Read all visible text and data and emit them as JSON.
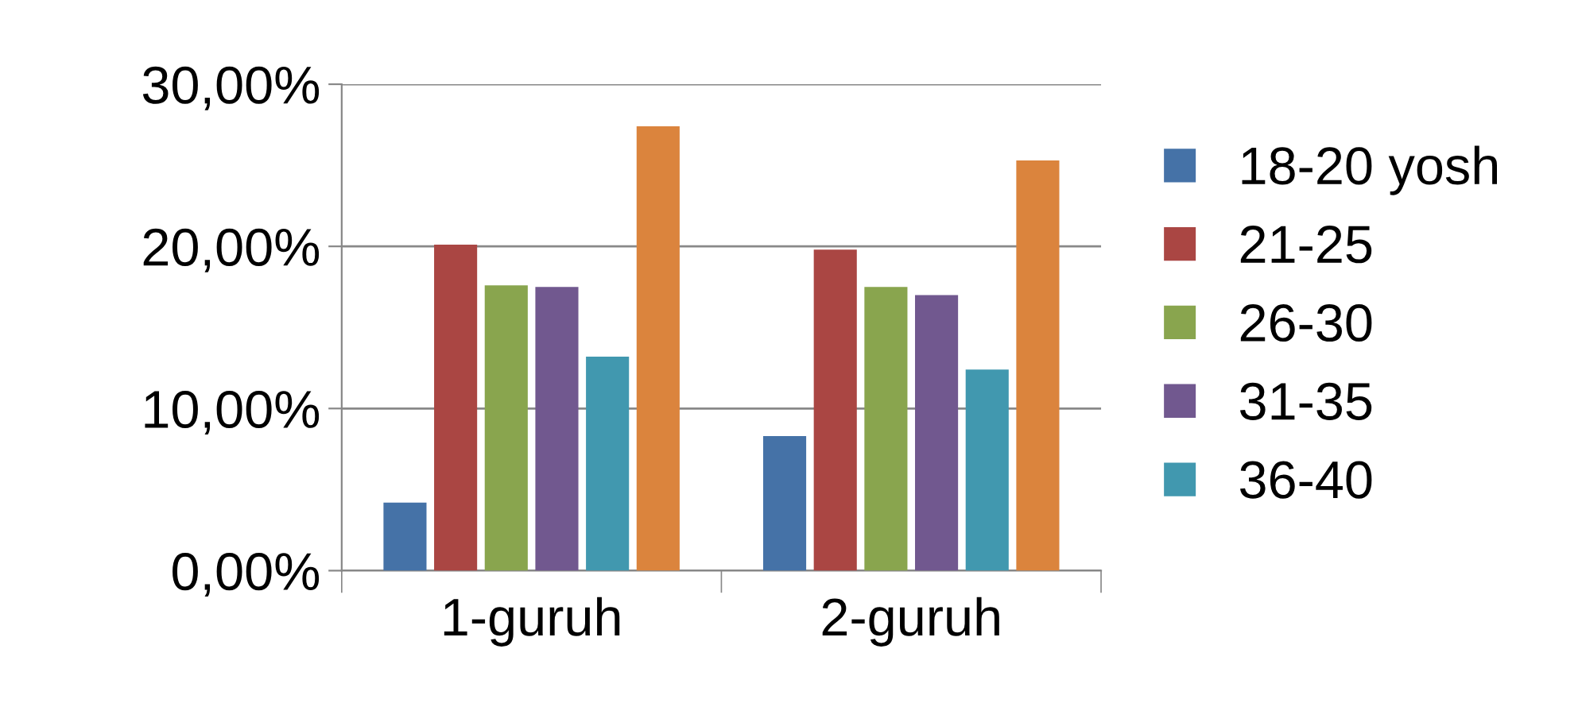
{
  "chart_data": {
    "type": "bar",
    "categories": [
      "1-guruh",
      "2-guruh"
    ],
    "series": [
      {
        "name": "18-20 yosh",
        "color": "#4572a7",
        "values": [
          4.2,
          8.3
        ]
      },
      {
        "name": "21-25",
        "color": "#aa4643",
        "values": [
          20.1,
          19.8
        ]
      },
      {
        "name": "26-30",
        "color": "#89a54e",
        "values": [
          17.6,
          17.5
        ]
      },
      {
        "name": "31-35",
        "color": "#71588f",
        "values": [
          17.5,
          17.0
        ]
      },
      {
        "name": "36-40",
        "color": "#4198af",
        "values": [
          13.2,
          12.4
        ]
      },
      {
        "color": "#db843d",
        "values": [
          27.4,
          25.3
        ]
      }
    ],
    "ylim": [
      0,
      30
    ],
    "yticks": [
      {
        "value": 0,
        "label": "0,00%"
      },
      {
        "value": 10,
        "label": "10,00%"
      },
      {
        "value": 20,
        "label": "20,00%"
      },
      {
        "value": 30,
        "label": "30,00%"
      }
    ],
    "grid": "y",
    "legend": "right"
  }
}
